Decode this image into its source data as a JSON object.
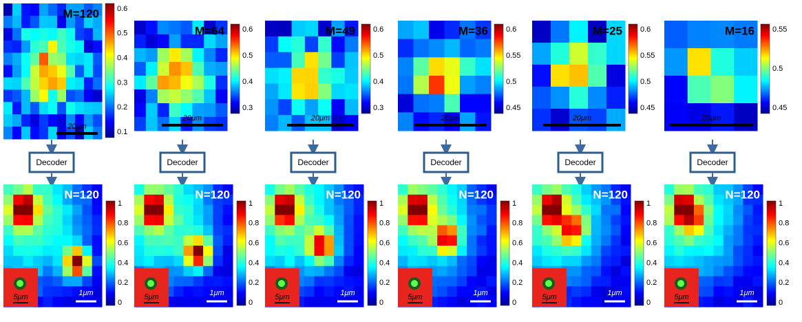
{
  "panels": [
    {
      "top": {
        "label": "M=120",
        "colorbar_ticks": [
          "0.6",
          "0.5",
          "0.4",
          "0.3",
          "0.2",
          "0.1"
        ],
        "scale_bar": "20μm"
      },
      "decoder": "Decoder",
      "bottom": {
        "label": "N=120",
        "colorbar_ticks": [
          "1",
          "0.8",
          "0.6",
          "0.4",
          "0.2",
          "0"
        ],
        "scale_bar": "1μm",
        "inset_scale_bar": "5μm"
      }
    },
    {
      "top": {
        "label": "M=64",
        "colorbar_ticks": [
          "0.6",
          "0.5",
          "0.4",
          "0.3"
        ],
        "scale_bar": "20μm"
      },
      "decoder": "Decoder",
      "bottom": {
        "label": "N=120",
        "colorbar_ticks": [
          "1",
          "0.8",
          "0.6",
          "0.4",
          "0.2",
          "0"
        ],
        "scale_bar": "1μm",
        "inset_scale_bar": "5μm"
      }
    },
    {
      "top": {
        "label": "M=49",
        "colorbar_ticks": [
          "0.6",
          "0.5",
          "0.4",
          "0.3"
        ],
        "scale_bar": "20μm"
      },
      "decoder": "Decoder",
      "bottom": {
        "label": "N=120",
        "colorbar_ticks": [
          "1",
          "0.8",
          "0.6",
          "0.4",
          "0.2",
          "0"
        ],
        "scale_bar": "1μm",
        "inset_scale_bar": "5μm"
      }
    },
    {
      "top": {
        "label": "M=36",
        "colorbar_ticks": [
          "0.6",
          "0.55",
          "0.5",
          "0.45"
        ],
        "scale_bar": "20μm"
      },
      "decoder": "Decoder",
      "bottom": {
        "label": "N=120",
        "colorbar_ticks": [
          "1",
          "0.8",
          "0.6",
          "0.4",
          "0.2",
          "0"
        ],
        "scale_bar": "1μm",
        "inset_scale_bar": "5μm"
      }
    },
    {
      "top": {
        "label": "M=25",
        "colorbar_ticks": [
          "0.6",
          "0.55",
          "0.5",
          "0.45"
        ],
        "scale_bar": "20μm"
      },
      "decoder": "Decoder",
      "bottom": {
        "label": "N=120",
        "colorbar_ticks": [
          "1",
          "0.8",
          "0.6",
          "0.4",
          "0.2",
          "0"
        ],
        "scale_bar": "1μm",
        "inset_scale_bar": "5μm"
      }
    },
    {
      "top": {
        "label": "M=16",
        "colorbar_ticks": [
          "0.55",
          "0.5",
          "0.45"
        ],
        "scale_bar": "20μm"
      },
      "decoder": "Decoder",
      "bottom": {
        "label": "N=120",
        "colorbar_ticks": [
          "1",
          "0.8",
          "0.6",
          "0.4",
          "0.2",
          "0"
        ],
        "scale_bar": "1μm",
        "inset_scale_bar": "5μm"
      }
    }
  ]
}
